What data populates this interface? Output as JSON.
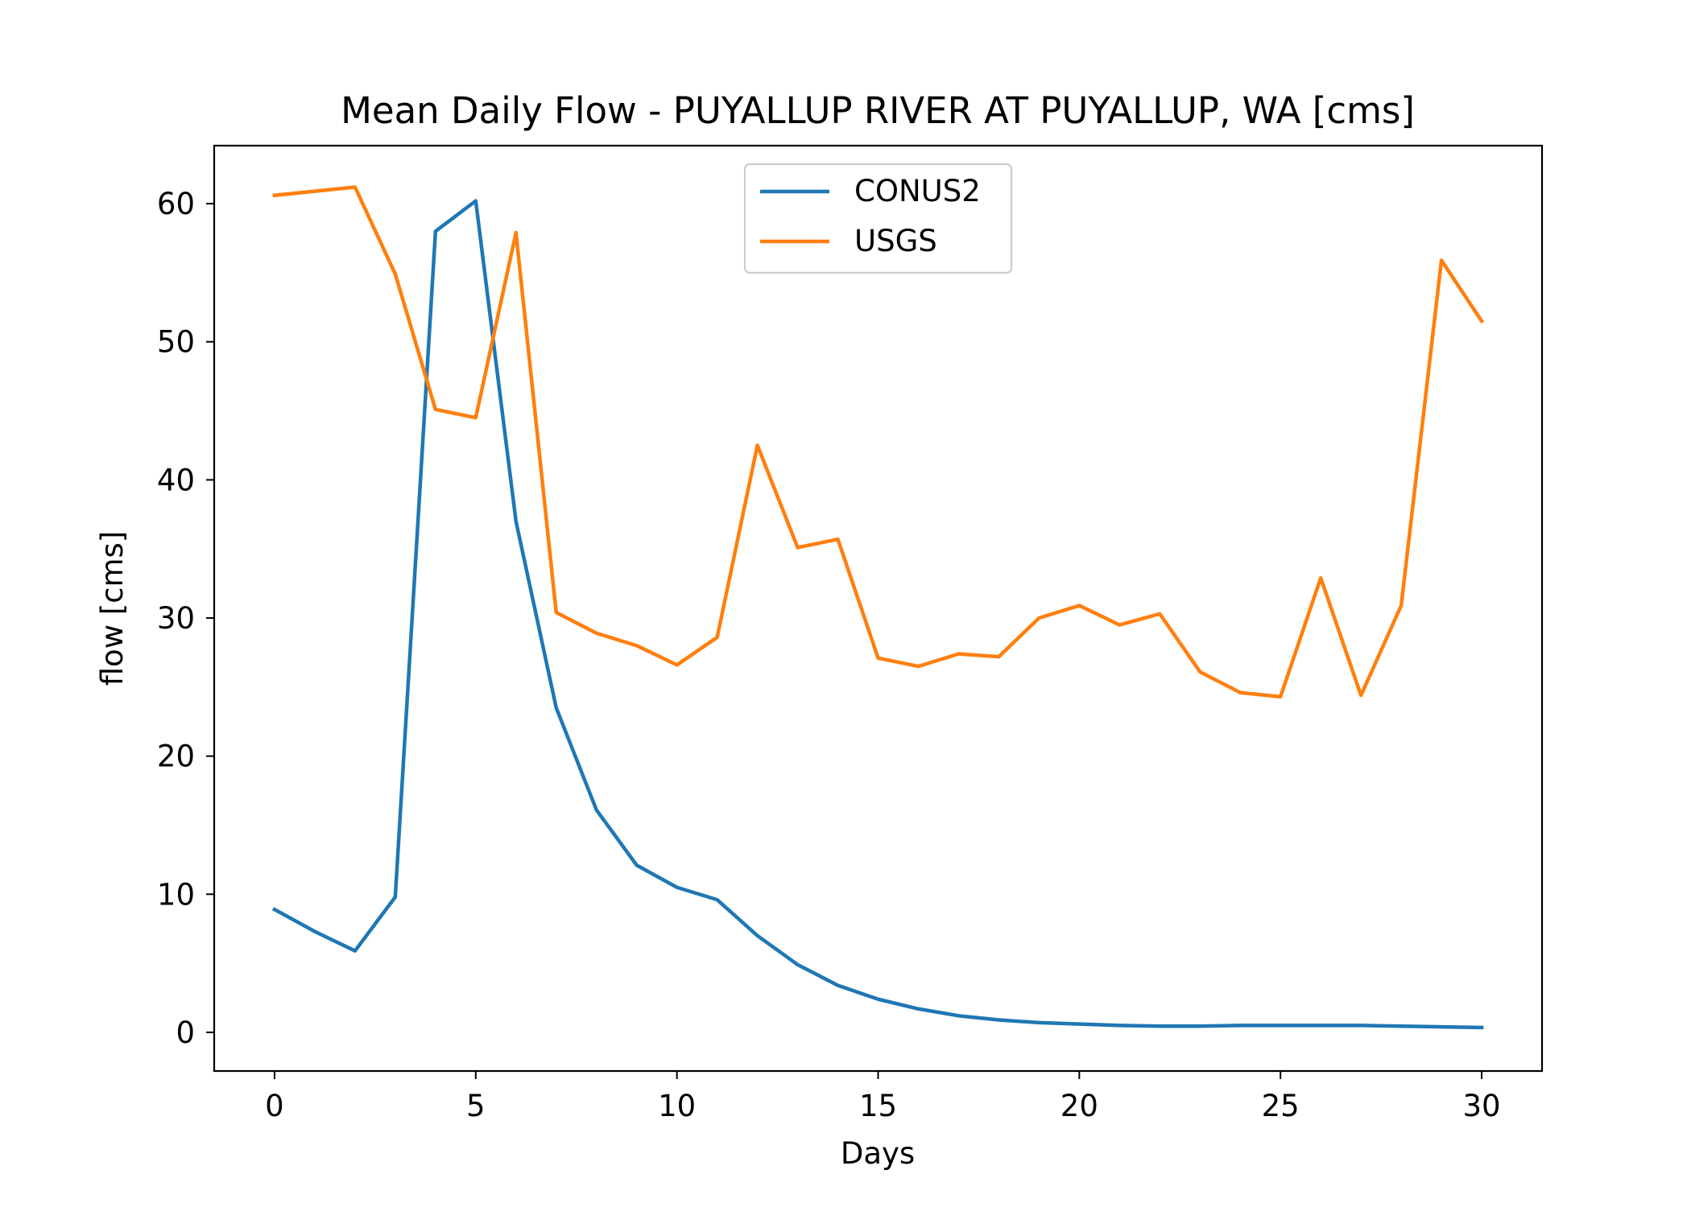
{
  "chart_data": {
    "type": "line",
    "title": "Mean Daily Flow - PUYALLUP RIVER AT PUYALLUP, WA [cms]",
    "xlabel": "Days",
    "ylabel": "flow [cms]",
    "xlim": [
      -1.5,
      31.5
    ],
    "ylim": [
      -2.8,
      64.2
    ],
    "xticks": [
      0,
      5,
      10,
      15,
      20,
      25,
      30
    ],
    "yticks": [
      0,
      10,
      20,
      30,
      40,
      50,
      60
    ],
    "grid": false,
    "legend_position": "upper center",
    "x": [
      0,
      1,
      2,
      3,
      4,
      5,
      6,
      7,
      8,
      9,
      10,
      11,
      12,
      13,
      14,
      15,
      16,
      17,
      18,
      19,
      20,
      21,
      22,
      23,
      24,
      25,
      26,
      27,
      28,
      29,
      30
    ],
    "series": [
      {
        "name": "CONUS2",
        "color": "#1f77b4",
        "values": [
          8.9,
          7.3,
          5.9,
          9.8,
          58.0,
          60.2,
          37.0,
          23.5,
          16.1,
          12.1,
          10.5,
          9.6,
          7.0,
          4.9,
          3.4,
          2.4,
          1.7,
          1.2,
          0.9,
          0.7,
          0.6,
          0.5,
          0.45,
          0.45,
          0.5,
          0.5,
          0.5,
          0.5,
          0.45,
          0.4,
          0.35
        ]
      },
      {
        "name": "USGS",
        "color": "#ff7f0e",
        "values": [
          60.6,
          60.9,
          61.2,
          54.9,
          45.1,
          44.5,
          57.9,
          30.4,
          28.9,
          28.0,
          26.6,
          28.6,
          42.5,
          35.1,
          35.7,
          27.1,
          26.5,
          27.4,
          27.2,
          30.0,
          30.9,
          29.5,
          30.3,
          26.1,
          24.6,
          24.3,
          32.9,
          24.4,
          30.9,
          55.9,
          51.5
        ]
      }
    ]
  }
}
